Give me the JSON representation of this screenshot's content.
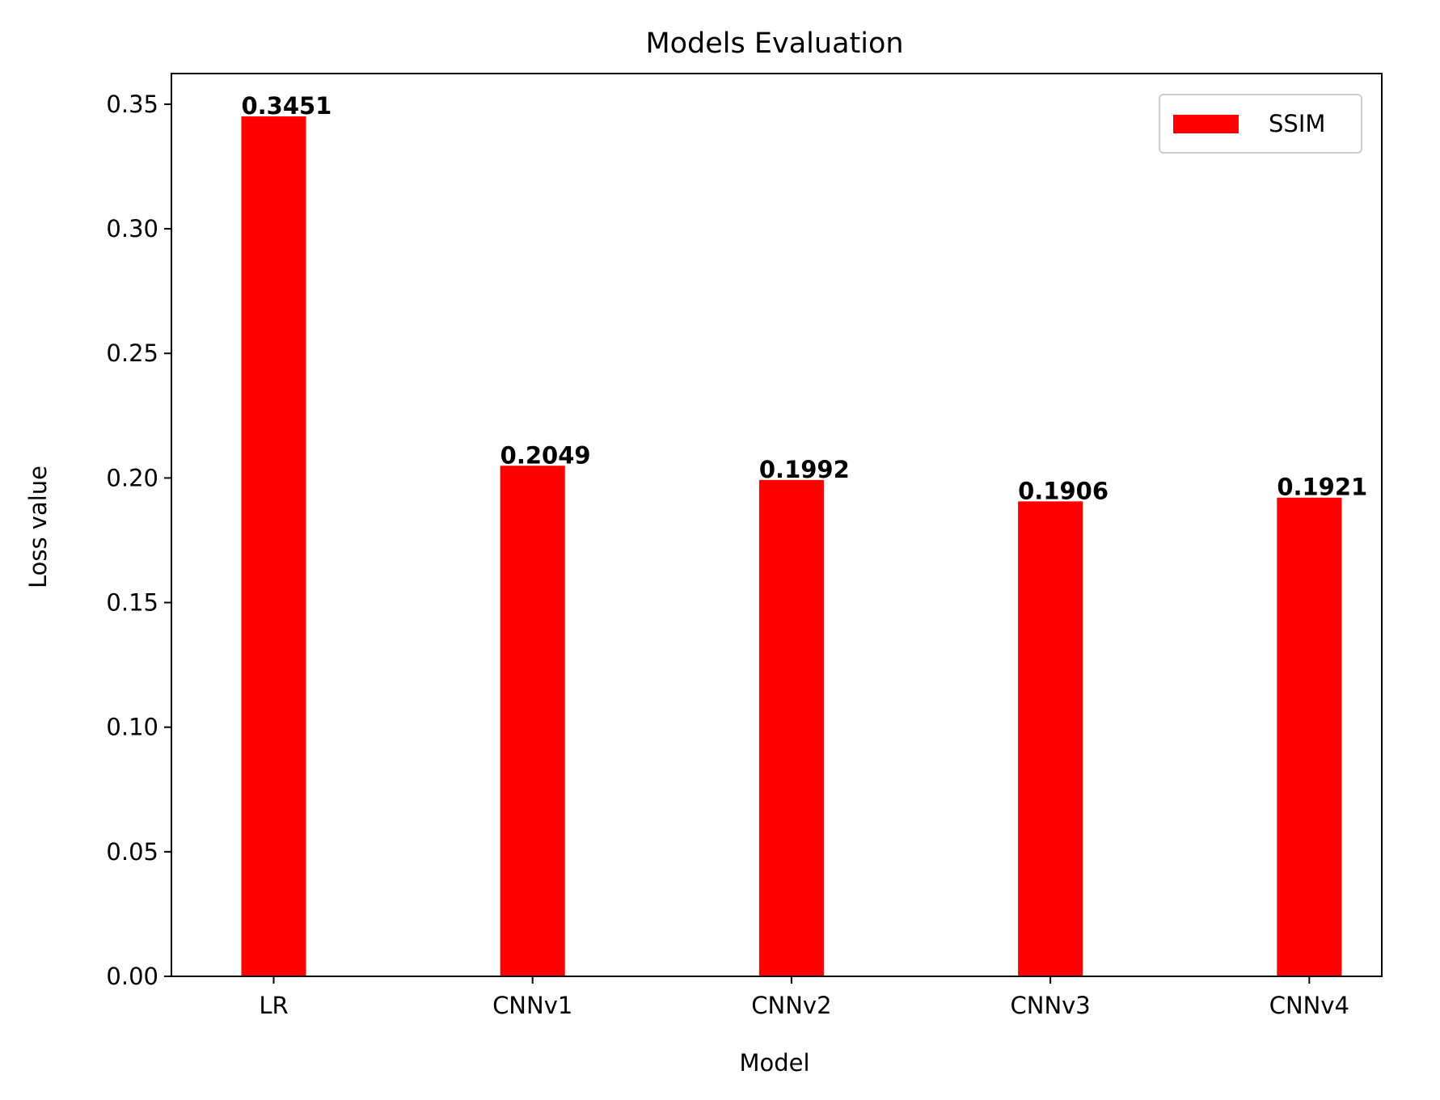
{
  "chart_data": {
    "type": "bar",
    "title": "Models Evaluation",
    "xlabel": "Model",
    "ylabel": "Loss value",
    "categories": [
      "LR",
      "CNNv1",
      "CNNv2",
      "CNNv3",
      "CNNv4"
    ],
    "series": [
      {
        "name": "SSIM",
        "color": "#ff0000",
        "values": [
          0.3451,
          0.2049,
          0.1992,
          0.1906,
          0.1921
        ],
        "labels": [
          "0.3451",
          "0.2049",
          "0.1992",
          "0.1906",
          "0.1921"
        ]
      }
    ],
    "ylim": [
      0,
      0.3623
    ],
    "yticks": [
      0.0,
      0.05,
      0.1,
      0.15,
      0.2,
      0.25,
      0.3,
      0.35
    ],
    "ytick_labels": [
      "0.00",
      "0.05",
      "0.10",
      "0.15",
      "0.20",
      "0.25",
      "0.30",
      "0.35"
    ],
    "grid": false,
    "legend": "top-right"
  }
}
